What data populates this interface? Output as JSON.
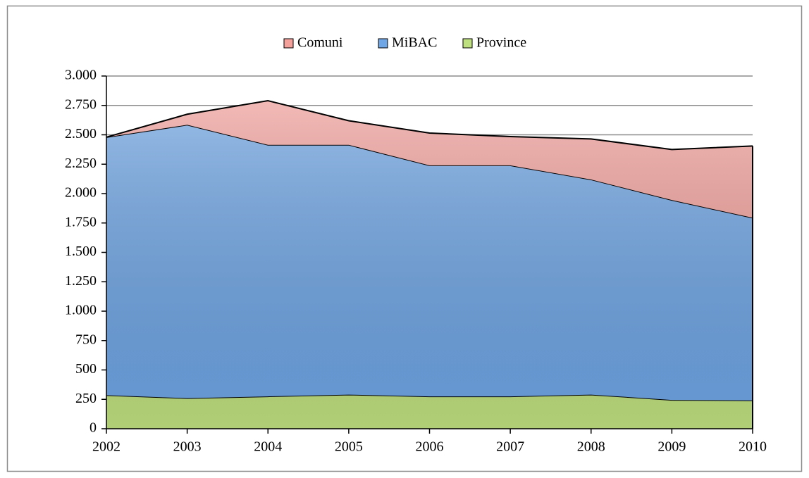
{
  "chart_data": {
    "type": "stacked_area",
    "categories": [
      "2002",
      "2003",
      "2004",
      "2005",
      "2006",
      "2007",
      "2008",
      "2009",
      "2010"
    ],
    "series": [
      {
        "name": "Comuni",
        "color": "#f4a09b",
        "values": [
          0,
          90,
          375,
          205,
          275,
          245,
          345,
          430,
          610
        ]
      },
      {
        "name": "MiBAC",
        "color": "#6fa6e6",
        "values": [
          2195,
          2325,
          2140,
          2125,
          1965,
          1965,
          1830,
          1700,
          1555
        ]
      },
      {
        "name": "Province",
        "color": "#bfe07f",
        "values": [
          285,
          260,
          275,
          290,
          275,
          275,
          290,
          245,
          240
        ]
      }
    ],
    "ylim": [
      0,
      3000
    ],
    "yticks": [
      0,
      250,
      500,
      750,
      {
        "value": 1000,
        "label": "1.000"
      },
      {
        "value": 1250,
        "label": "1.250"
      },
      {
        "value": 1500,
        "label": "1.500"
      },
      {
        "value": 1750,
        "label": "1.750"
      },
      {
        "value": 2000,
        "label": "2.000"
      },
      {
        "value": 2250,
        "label": "2.250"
      },
      {
        "value": 2500,
        "label": "2.500"
      },
      {
        "value": 2750,
        "label": "2.750"
      },
      {
        "value": 3000,
        "label": "3.000"
      }
    ],
    "grid": true,
    "legend": "top"
  }
}
